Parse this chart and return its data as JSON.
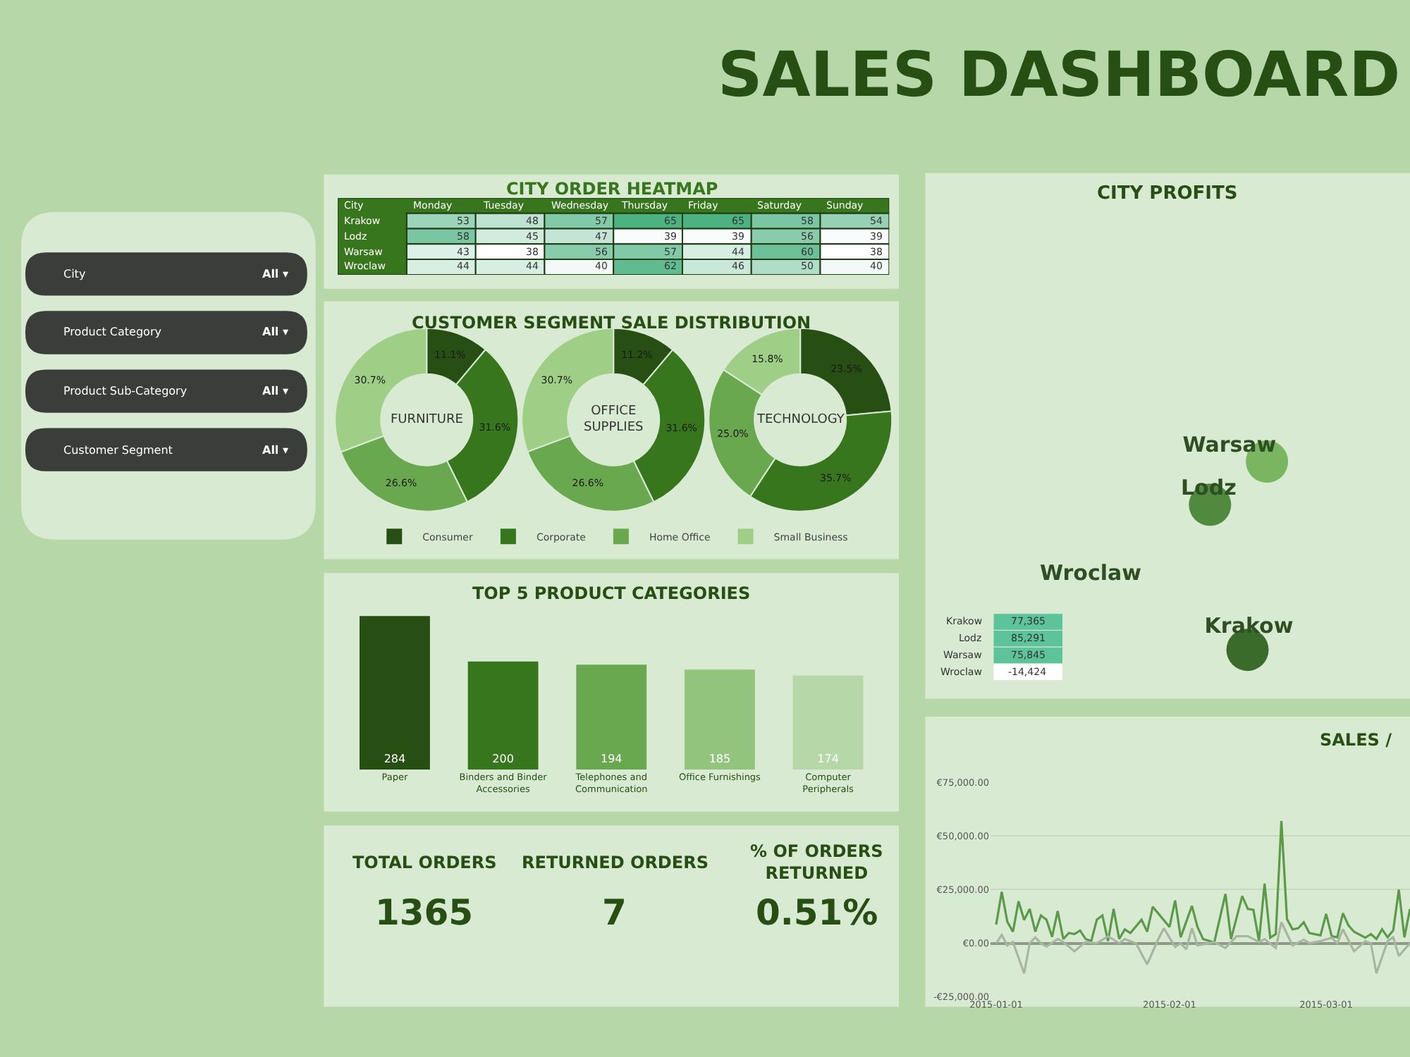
{
  "chart_data": [
    {
      "type": "other",
      "title": "SALES DASHBOARD"
    },
    {
      "type": "other",
      "annotations": [
        "City",
        "All ▾",
        "Product Category",
        "All ▾",
        "Product Sub-Category",
        "All ▾",
        "Customer Segment",
        "All ▾"
      ]
    },
    {
      "type": "heatmap",
      "title": "CITY ORDER HEATMAP",
      "ylabel": "City",
      "data_labels": true,
      "categories": [
        "Monday",
        "Tuesday",
        "Wednesday",
        "Thursday",
        "Friday",
        "Saturday",
        "Sunday"
      ],
      "y_categories": [
        "Krakow",
        "Lodz",
        "Warsaw",
        "Wroclaw"
      ],
      "cells": [
        [
          53,
          48,
          57,
          65,
          65,
          58,
          54
        ],
        [
          58,
          45,
          47,
          39,
          39,
          56,
          39
        ],
        [
          43,
          38,
          56,
          57,
          44,
          60,
          38
        ],
        [
          44,
          44,
          40,
          62,
          46,
          50,
          40
        ]
      ]
    },
    {
      "type": "other",
      "title": "CITY PROFITS",
      "categories": [
        "Krakow",
        "Lodz",
        "Warsaw",
        "Wroclaw"
      ],
      "values": [
        77365,
        85291,
        75845,
        -14424
      ],
      "value_labels": [
        "77,365",
        "85,291",
        "75,845",
        "-14,424"
      ]
    },
    {
      "type": "donut",
      "title": "CUSTOMER SEGMENT SALE DISTRIBUTION",
      "categories": [
        "Consumer",
        "Corporate",
        "Home Office",
        "Small Business"
      ],
      "colors": [
        "#274e13",
        "#38761d",
        "#6aa84f",
        "#9fcf87"
      ],
      "legend": "bottom",
      "series": [
        {
          "name": "FURNITURE",
          "values": [
            11.1,
            31.6,
            26.6,
            30.7
          ],
          "value_labels": [
            "11.1%",
            "31.6%",
            "26.6%",
            "30.7%"
          ]
        },
        {
          "name": "OFFICE SUPPLIES",
          "values": [
            11.2,
            31.6,
            26.6,
            30.7
          ],
          "value_labels": [
            "11.2%",
            "31.6%",
            "26.6%",
            "30.7%"
          ]
        },
        {
          "name": "TECHNOLOGY",
          "values": [
            23.5,
            35.7,
            25.0,
            15.8
          ],
          "value_labels": [
            "23.5%",
            "35.7%",
            "25.0%",
            "15.8%"
          ]
        }
      ]
    },
    {
      "type": "bar",
      "title": "TOP 5 PRODUCT CATEGORIES",
      "categories": [
        "Paper",
        "Binders and Binder Accessories",
        "Telephones and Communication",
        "Office Furnishings",
        "Computer Peripherals"
      ],
      "values": [
        284,
        200,
        194,
        185,
        174
      ],
      "colors": [
        "#274e13",
        "#38761d",
        "#6aa84f",
        "#93c47d",
        "#b6d7a8"
      ],
      "data_labels": true
    },
    {
      "type": "other",
      "annotations": [
        "TOTAL ORDERS",
        "1365",
        "RETURNED ORDERS",
        "7",
        "% OF ORDERS\nRETURNED",
        "0.51%"
      ]
    },
    {
      "type": "line",
      "title": "SALES /",
      "xlim": [
        "2014-12-31",
        "2015-03-16"
      ],
      "xticks": [
        {
          "value": "2015-01-01",
          "label": "2015-01-01"
        },
        {
          "value": "2015-02-01",
          "label": "2015-02-01"
        },
        {
          "value": "2015-03-01",
          "label": "2015-03-01"
        }
      ],
      "ylim": [
        -25000,
        75000
      ],
      "yticks": [
        {
          "value": -25000,
          "label": "-€25,000.00"
        },
        {
          "value": 0,
          "label": "€0.00"
        },
        {
          "value": 25000,
          "label": "€25,000.00"
        },
        {
          "value": 50000,
          "label": "€50,000.00"
        },
        {
          "value": 75000,
          "label": "€75,000.00"
        }
      ],
      "grid": "y",
      "series": [
        {
          "color": "#5b9a49",
          "x": [
            "2015-01-01",
            "2015-01-02",
            "2015-01-03",
            "2015-01-04",
            "2015-01-05",
            "2015-01-06",
            "2015-01-07",
            "2015-01-08",
            "2015-01-09",
            "2015-01-10",
            "2015-01-11",
            "2015-01-12",
            "2015-01-13",
            "2015-01-14",
            "2015-01-15",
            "2015-01-16",
            "2015-01-17",
            "2015-01-18",
            "2015-01-19",
            "2015-01-20",
            "2015-01-21",
            "2015-01-22",
            "2015-01-23",
            "2015-01-24",
            "2015-01-25",
            "2015-01-27",
            "2015-01-28",
            "2015-01-29",
            "2015-02-01",
            "2015-02-02",
            "2015-02-03",
            "2015-02-05",
            "2015-02-06",
            "2015-02-07",
            "2015-02-09",
            "2015-02-11",
            "2015-02-12",
            "2015-02-14",
            "2015-02-15",
            "2015-02-16",
            "2015-02-17",
            "2015-02-18",
            "2015-02-19",
            "2015-02-20",
            "2015-02-21",
            "2015-02-22",
            "2015-02-23",
            "2015-02-24",
            "2015-02-25",
            "2015-02-26",
            "2015-02-28",
            "2015-03-01",
            "2015-03-02",
            "2015-03-03",
            "2015-03-04",
            "2015-03-05",
            "2015-03-06",
            "2015-03-08",
            "2015-03-09",
            "2015-03-10",
            "2015-03-11",
            "2015-03-12",
            "2015-03-13",
            "2015-03-14",
            "2015-03-15",
            "2015-03-16"
          ],
          "values": [
            8700,
            24000,
            10000,
            5400,
            19600,
            10900,
            16000,
            5400,
            13000,
            11000,
            3000,
            15000,
            2000,
            4800,
            4300,
            6000,
            2000,
            1000,
            11000,
            13000,
            1000,
            16000,
            2000,
            6500,
            4800,
            11000,
            5400,
            17000,
            7600,
            20000,
            2800,
            17400,
            7600,
            2000,
            400,
            23000,
            2000,
            22000,
            16000,
            15600,
            1000,
            27800,
            2600,
            4300,
            57000,
            11300,
            6500,
            7000,
            9800,
            4800,
            3700,
            13700,
            3300,
            2800,
            14000,
            8300,
            5400,
            2600,
            4300,
            2000,
            6500,
            2800,
            6000,
            25000,
            2800,
            16000
          ]
        },
        {
          "color": "#a9b5a3",
          "x": [
            "2015-01-01",
            "2015-01-02",
            "2015-01-03",
            "2015-01-04",
            "2015-01-06",
            "2015-01-07",
            "2015-01-08",
            "2015-01-09",
            "2015-01-10",
            "2015-01-12",
            "2015-01-13",
            "2015-01-15",
            "2015-01-16",
            "2015-01-17",
            "2015-01-19",
            "2015-01-21",
            "2015-01-23",
            "2015-01-24",
            "2015-01-26",
            "2015-01-28",
            "2015-01-30",
            "2015-01-31",
            "2015-02-02",
            "2015-02-03",
            "2015-02-04",
            "2015-02-05",
            "2015-02-06",
            "2015-02-09",
            "2015-02-11",
            "2015-02-13",
            "2015-02-15",
            "2015-02-17",
            "2015-02-18",
            "2015-02-20",
            "2015-02-21",
            "2015-02-23",
            "2015-02-25",
            "2015-02-26",
            "2015-02-28",
            "2015-03-02",
            "2015-03-03",
            "2015-03-04",
            "2015-03-06",
            "2015-03-08",
            "2015-03-09",
            "2015-03-10",
            "2015-03-12",
            "2015-03-13",
            "2015-03-14",
            "2015-03-16"
          ],
          "values": [
            0,
            3900,
            -1000,
            600,
            -14000,
            0,
            2800,
            0,
            -1500,
            2000,
            600,
            -3700,
            -1500,
            600,
            0,
            3300,
            0,
            2000,
            0,
            -9800,
            2000,
            7000,
            -1700,
            0,
            -2800,
            7000,
            -1000,
            600,
            -2200,
            3300,
            3300,
            600,
            2000,
            -2200,
            9800,
            -1000,
            1700,
            0,
            1000,
            2600,
            0,
            6500,
            -3700,
            1000,
            0,
            -14000,
            1000,
            2800,
            -5900,
            0
          ]
        }
      ]
    }
  ]
}
